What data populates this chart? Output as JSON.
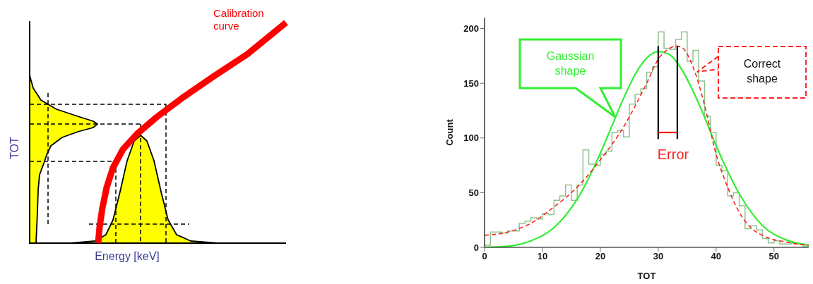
{
  "chart_data": [
    {
      "type": "other",
      "xlabel": "Energy [keV]",
      "ylabel": "TOT",
      "annotations": [
        "Calibration curve"
      ]
    },
    {
      "type": "line",
      "xlabel": "TOT",
      "ylabel": "Count",
      "xlim": [
        0,
        56
      ],
      "ylim": [
        0,
        210
      ],
      "xticks": [
        0,
        10,
        20,
        30,
        40,
        50
      ],
      "yticks": [
        0,
        50,
        100,
        150,
        200
      ],
      "annotations": [
        "Error"
      ],
      "series": [
        {
          "type": "histogram",
          "color": "#8fc28f",
          "bins": [
            0,
            1,
            2,
            3,
            4,
            5,
            6,
            7,
            8,
            9,
            10,
            11,
            12,
            13,
            14,
            15,
            16,
            17,
            18,
            19,
            20,
            21,
            22,
            23,
            24,
            25,
            26,
            27,
            28,
            29,
            30,
            31,
            32,
            33,
            34,
            35,
            36,
            37,
            38,
            39,
            40,
            41,
            42,
            43,
            44,
            45,
            46,
            47,
            48,
            49,
            50,
            51,
            52,
            53,
            54,
            55,
            56
          ],
          "values": [
            2,
            14,
            14,
            13,
            15,
            15,
            22,
            24,
            27,
            26,
            31,
            30,
            43,
            47,
            57,
            43,
            57,
            89,
            76,
            75,
            85,
            88,
            105,
            107,
            101,
            131,
            140,
            145,
            160,
            165,
            197,
            182,
            181,
            190,
            197,
            170,
            180,
            152,
            120,
            105,
            75,
            70,
            47,
            50,
            38,
            17,
            20,
            16,
            8,
            4,
            6,
            3,
            3,
            4,
            3,
            1
          ]
        },
        {
          "type": "line",
          "name": "Gaussian shape",
          "color": "#33ee33",
          "x": [
            0,
            4,
            8,
            12,
            16,
            20,
            22,
            24,
            26,
            28,
            30,
            32,
            34,
            36,
            38,
            40,
            44,
            48,
            52,
            56
          ],
          "values": [
            0,
            1,
            6,
            18,
            44,
            86,
            111,
            136,
            158,
            173,
            179,
            176,
            163,
            143,
            119,
            93,
            49,
            20,
            7,
            2
          ]
        },
        {
          "type": "line",
          "name": "Correct shape",
          "line_style": "dashed",
          "color": "#ff2222",
          "x": [
            0,
            4,
            8,
            12,
            16,
            20,
            24,
            28,
            30,
            32,
            33,
            34,
            36,
            38,
            40,
            42,
            44,
            46,
            48,
            50,
            52,
            54,
            56
          ],
          "values": [
            11,
            14,
            22,
            37,
            55,
            80,
            110,
            150,
            172,
            182,
            184,
            183,
            165,
            130,
            85,
            55,
            32,
            18,
            11,
            7,
            5,
            3,
            2
          ]
        },
        {
          "type": "line",
          "color": "#000000",
          "x": [
            30,
            30
          ],
          "values": [
            184,
            99
          ]
        },
        {
          "type": "line",
          "color": "#000000",
          "x": [
            33.3,
            33.3
          ],
          "values": [
            184,
            99
          ]
        },
        {
          "type": "line",
          "color": "#ff0000",
          "x": [
            30,
            33.3
          ],
          "values": [
            105,
            105
          ]
        }
      ]
    }
  ]
}
